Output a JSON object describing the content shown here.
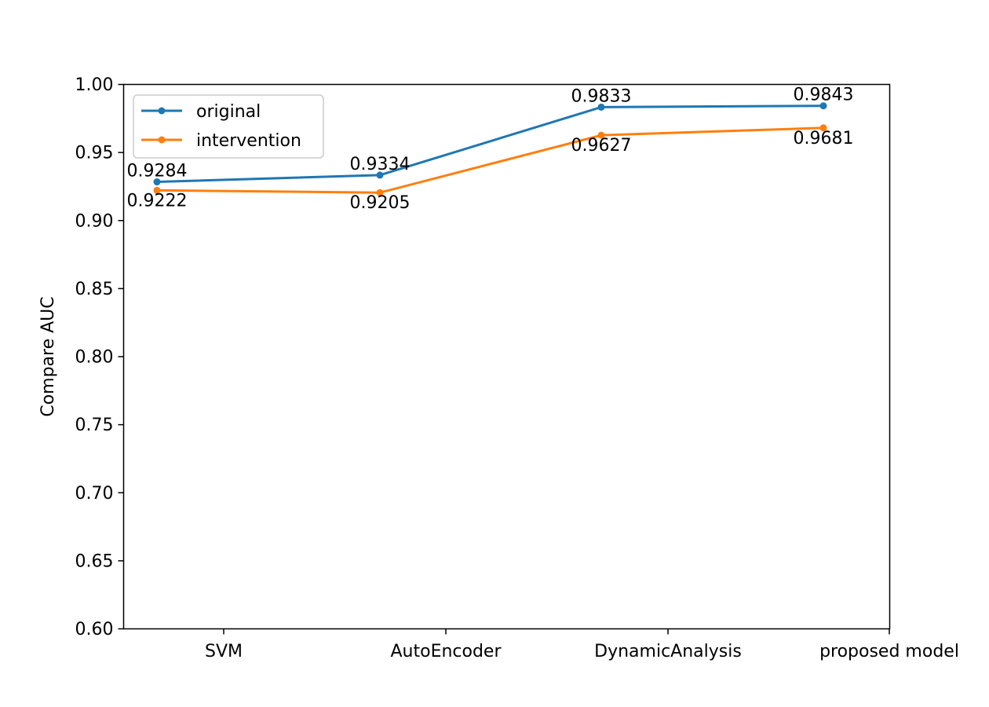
{
  "chart_data": {
    "type": "line",
    "title": "",
    "xlabel": "",
    "ylabel": "Compare AUC",
    "ylim": [
      0.6,
      1.0
    ],
    "yticks": [
      "0.60",
      "0.65",
      "0.70",
      "0.75",
      "0.80",
      "0.85",
      "0.90",
      "0.95",
      "1.00"
    ],
    "categories": [
      "SVM",
      "AutoEncoder",
      "DynamicAnalysis",
      "proposed model"
    ],
    "series": [
      {
        "name": "original",
        "color": "#1f77b4",
        "values": [
          0.9284,
          0.9334,
          0.9833,
          0.9843
        ],
        "labels": [
          "0.9284",
          "0.9334",
          "0.9833",
          "0.9843"
        ],
        "label_position": "above"
      },
      {
        "name": "intervention",
        "color": "#ff7f0e",
        "values": [
          0.9222,
          0.9205,
          0.9627,
          0.9681
        ],
        "labels": [
          "0.9222",
          "0.9205",
          "0.9627",
          "0.9681"
        ],
        "label_position": "below"
      }
    ],
    "legend": "upper-left",
    "grid": false
  }
}
